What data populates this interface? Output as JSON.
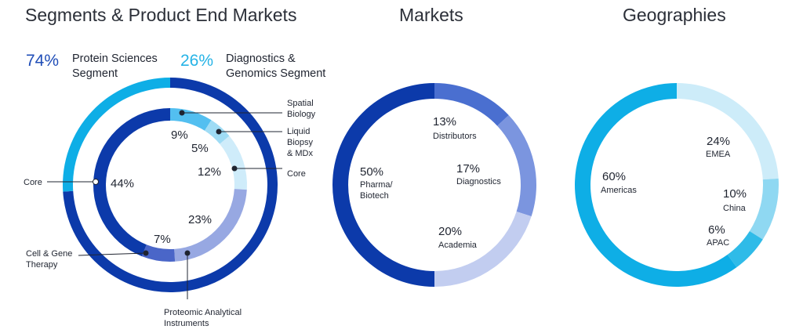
{
  "titles": {
    "segments": "Segments & Product End Markets",
    "markets": "Markets",
    "geographies": "Geographies"
  },
  "segment_headers": {
    "protein": {
      "pct": "74%",
      "label": "Protein Sciences Segment",
      "color": "#1f4db7"
    },
    "diagnostics": {
      "pct": "26%",
      "label": "Diagnostics & Genomics Segment",
      "color": "#25b3e6"
    }
  },
  "chart_data": [
    {
      "type": "pie",
      "name": "Segments (outer ring)",
      "series": [
        {
          "name": "Protein Sciences Segment",
          "value": 74,
          "color": "#0c3aaa"
        },
        {
          "name": "Diagnostics & Genomics Segment",
          "value": 26,
          "color": "#0eaee6"
        }
      ]
    },
    {
      "type": "pie",
      "name": "Product End Markets (inner ring)",
      "series": [
        {
          "name": "Spatial Biology",
          "pct": "9%",
          "value": 9,
          "color": "#53bff0"
        },
        {
          "name": "Liquid Biopsy & MDx",
          "pct": "5%",
          "value": 5,
          "color": "#9fdcf5"
        },
        {
          "name": "Core",
          "pct": "12%",
          "value": 12,
          "color": "#cfecfa"
        },
        {
          "name": "Proteomic Analytical Instruments",
          "pct": "23%",
          "value": 23,
          "color": "#97a8e2"
        },
        {
          "name": "Cell & Gene Therapy",
          "pct": "7%",
          "value": 7,
          "color": "#4a66c8"
        },
        {
          "name": "Core",
          "pct": "44%",
          "value": 44,
          "color": "#0c3aaa"
        }
      ]
    },
    {
      "type": "pie",
      "name": "Markets",
      "series": [
        {
          "name": "Distributors",
          "pct": "13%",
          "value": 13,
          "color": "#4a6fd0"
        },
        {
          "name": "Diagnostics",
          "pct": "17%",
          "value": 17,
          "color": "#7b95df"
        },
        {
          "name": "Academia",
          "pct": "20%",
          "value": 20,
          "color": "#c2cdf0"
        },
        {
          "name": "Pharma/ Biotech",
          "pct": "50%",
          "value": 50,
          "color": "#0c3aaa"
        }
      ]
    },
    {
      "type": "pie",
      "name": "Geographies",
      "series": [
        {
          "name": "EMEA",
          "pct": "24%",
          "value": 24,
          "color": "#cdecf9"
        },
        {
          "name": "China",
          "pct": "10%",
          "value": 10,
          "color": "#8fd8f2"
        },
        {
          "name": "APAC",
          "pct": "6%",
          "value": 6,
          "color": "#2fbbe8"
        },
        {
          "name": "Americas",
          "pct": "60%",
          "value": 60,
          "color": "#0eaee6"
        }
      ]
    }
  ],
  "callouts": {
    "spatial_biology": "Spatial Biology",
    "liquid_biopsy": "Liquid Biopsy & MDx",
    "core_right": "Core",
    "core_left": "Core",
    "cell_gene": "Cell & Gene Therapy",
    "proteomic": "Proteomic Analytical Instruments"
  }
}
